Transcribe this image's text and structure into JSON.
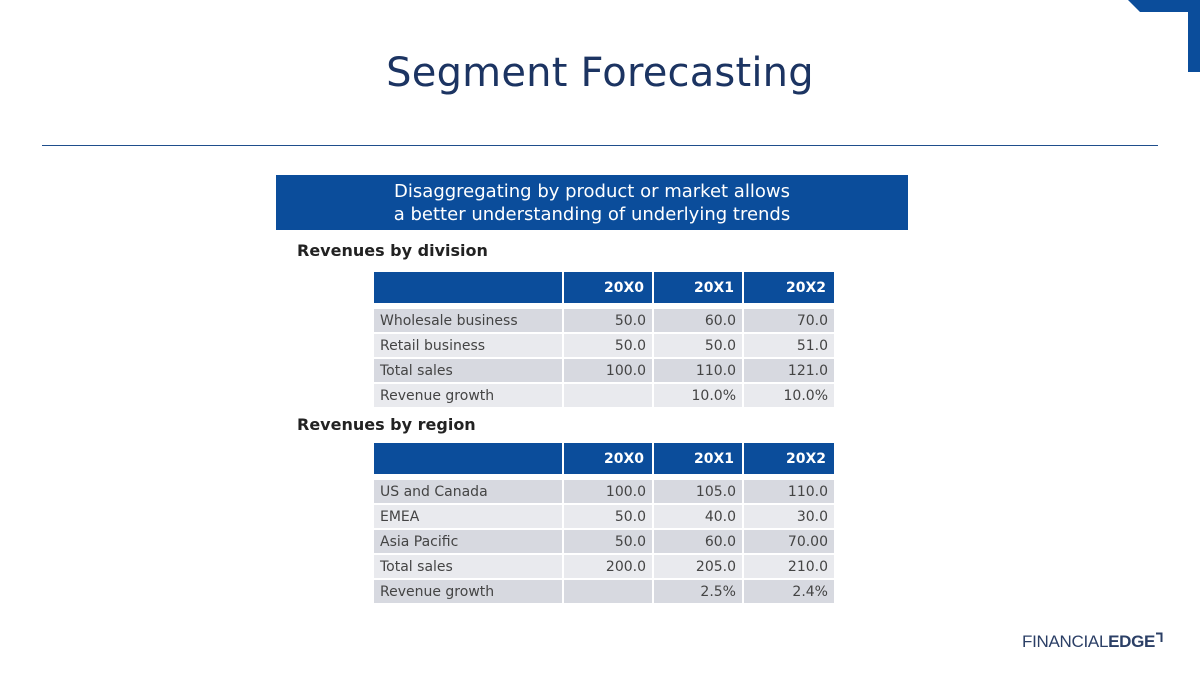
{
  "slide": {
    "title": "Segment Forecasting",
    "banner_line1": "Disaggregating by product or market allows",
    "banner_line2": "a better understanding of underlying trends"
  },
  "division": {
    "label": "Revenues by division",
    "headers": [
      "",
      "20X0",
      "20X1",
      "20X2"
    ],
    "rows": [
      [
        "Wholesale business",
        "50.0",
        "60.0",
        "70.0"
      ],
      [
        "Retail business",
        "50.0",
        "50.0",
        "51.0"
      ],
      [
        "Total sales",
        "100.0",
        "110.0",
        "121.0"
      ],
      [
        "Revenue growth",
        "",
        "10.0%",
        "10.0%"
      ]
    ]
  },
  "region": {
    "label": "Revenues by region",
    "headers": [
      "",
      "20X0",
      "20X1",
      "20X2"
    ],
    "rows": [
      [
        "US and Canada",
        "100.0",
        "105.0",
        "110.0"
      ],
      [
        "EMEA",
        "50.0",
        "40.0",
        "30.0"
      ],
      [
        "Asia Pacific",
        "50.0",
        "60.0",
        "70.00"
      ],
      [
        "Total sales",
        "200.0",
        "205.0",
        "210.0"
      ],
      [
        "Revenue growth",
        "",
        "2.5%",
        "2.4%"
      ]
    ]
  },
  "logo": {
    "part1": "FINANCIAL",
    "part2": "EDGE"
  },
  "colors": {
    "brand_blue": "#0b4d9b",
    "title_navy": "#1c3462",
    "row_dark": "#d7d9e0",
    "row_light": "#e9eaee"
  }
}
